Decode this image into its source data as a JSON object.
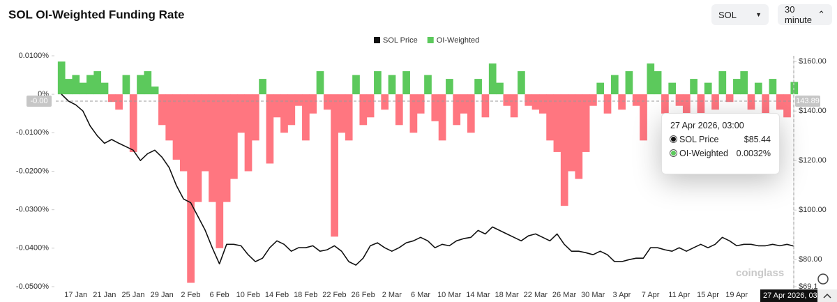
{
  "chart_data": {
    "type": "bar-line",
    "title": "SOL OI-Weighted Funding Rate",
    "controls": {
      "symbol": "SOL",
      "interval": "30 minute"
    },
    "watermark": "coinglass",
    "categories": [
      null,
      null,
      "17 Jan",
      null,
      null,
      null,
      "21 Jan",
      null,
      null,
      null,
      "25 Jan",
      null,
      null,
      null,
      "29 Jan",
      null,
      null,
      null,
      "2 Feb",
      null,
      null,
      null,
      "6 Feb",
      null,
      null,
      null,
      "10 Feb",
      null,
      null,
      null,
      "14 Feb",
      null,
      null,
      null,
      "18 Feb",
      null,
      null,
      null,
      "22 Feb",
      null,
      null,
      null,
      "26 Feb",
      null,
      null,
      null,
      "2 Mar",
      null,
      null,
      null,
      "6 Mar",
      null,
      null,
      null,
      "10 Mar",
      null,
      null,
      null,
      "14 Mar",
      null,
      null,
      null,
      "18 Mar",
      null,
      null,
      null,
      "22 Mar",
      null,
      null,
      null,
      "26 Mar",
      null,
      null,
      null,
      "30 Mar",
      null,
      null,
      null,
      "3 Apr",
      null,
      null,
      null,
      "7 Apr",
      null,
      null,
      null,
      "11 Apr",
      null,
      null,
      null,
      "15 Apr",
      null,
      null,
      null,
      "19 Apr",
      null,
      null,
      null,
      null,
      null,
      null,
      null,
      null
    ],
    "series": [
      {
        "name": "SOL Price",
        "color": "#111111",
        "axis": "y2",
        "values": [
          146.8,
          144,
          142.5,
          140,
          134,
          130,
          127,
          128.5,
          127,
          125.6,
          124.2,
          120,
          122.8,
          124.2,
          121.4,
          117.2,
          110,
          104.5,
          103,
          97.5,
          92,
          84.8,
          78.3,
          86.2,
          86.2,
          85.6,
          82,
          79.2,
          80.6,
          84.8,
          87.6,
          86.2,
          83.4,
          84.8,
          84.8,
          85.6,
          83.4,
          84,
          85.6,
          83.4,
          79.2,
          77.8,
          80.6,
          85.6,
          86.8,
          84.8,
          83.4,
          84.8,
          86.8,
          87.6,
          89,
          87.6,
          84.8,
          86.2,
          85.6,
          87.6,
          88.5,
          89,
          91.8,
          90.4,
          93.2,
          91.8,
          90.4,
          89,
          87.6,
          89.6,
          90.4,
          89,
          87.6,
          90.4,
          86.2,
          83.4,
          83.4,
          82.8,
          82,
          83.4,
          82,
          79.2,
          79.2,
          80,
          80.6,
          80.6,
          84.8,
          84.8,
          84,
          83.4,
          84.8,
          83.4,
          84.8,
          86.2,
          84.8,
          86.2,
          89,
          87.6,
          85.6,
          86.2,
          86.2,
          85.6,
          85.6,
          86.2,
          85.6,
          86.2,
          85.44
        ]
      },
      {
        "name": "OI-Weighted",
        "color": "#5cc95c",
        "negative_color": "#ff7680",
        "axis": "y",
        "values": [
          0.0085,
          0.004,
          0.005,
          0.003,
          0.005,
          0.006,
          0.003,
          -0.002,
          -0.004,
          0.005,
          -0.015,
          0.005,
          0.006,
          0.002,
          -0.008,
          -0.012,
          -0.017,
          -0.02,
          -0.049,
          -0.028,
          -0.02,
          -0.028,
          -0.04,
          -0.028,
          -0.022,
          -0.01,
          -0.02,
          -0.012,
          0.004,
          -0.018,
          -0.006,
          -0.01,
          -0.008,
          -0.003,
          -0.012,
          -0.005,
          0.006,
          -0.004,
          -0.037,
          -0.01,
          -0.012,
          0.005,
          -0.008,
          -0.006,
          0.006,
          -0.004,
          0.005,
          -0.008,
          0.006,
          -0.01,
          -0.005,
          0.005,
          -0.007,
          -0.012,
          0.004,
          -0.008,
          -0.005,
          -0.01,
          0.004,
          -0.006,
          0.008,
          0.003,
          -0.003,
          -0.006,
          0.006,
          -0.003,
          -0.004,
          -0.005,
          -0.012,
          -0.015,
          -0.029,
          -0.02,
          -0.022,
          -0.015,
          -0.003,
          0.003,
          -0.005,
          0.005,
          -0.004,
          0.006,
          -0.003,
          -0.012,
          0.008,
          0.006,
          -0.005,
          0.003,
          -0.003,
          -0.006,
          0.004,
          -0.005,
          0.003,
          -0.004,
          0.006,
          -0.002,
          0.004,
          0.006,
          -0.004,
          0.003,
          -0.005,
          0.004,
          -0.004,
          -0.006,
          0.0032
        ]
      }
    ],
    "ylim": [
      -0.05,
      0.01
    ],
    "yticks": [
      {
        "value": 0.01,
        "label": "0.0100%"
      },
      {
        "value": 0,
        "label": "0%"
      },
      {
        "value": -0.01,
        "label": "-0.0100%"
      },
      {
        "value": -0.02,
        "label": "-0.0200%"
      },
      {
        "value": -0.03,
        "label": "-0.0300%"
      },
      {
        "value": -0.04,
        "label": "-0.0400%"
      },
      {
        "value": -0.05,
        "label": "-0.0500%"
      }
    ],
    "y2lim": [
      69.1,
      162.3
    ],
    "y2ticks": [
      {
        "value": 160,
        "label": "$160.00"
      },
      {
        "value": 140,
        "label": "$140.00"
      },
      {
        "value": 120,
        "label": "$120.00"
      },
      {
        "value": 100,
        "label": "$100.00"
      },
      {
        "value": 80,
        "label": "$80.00"
      },
      {
        "value": 69.1,
        "label": "$69.1"
      }
    ],
    "legend_position": "top",
    "crosshair": {
      "x_label": "27 Apr 2026, 03:",
      "y_label": "-0.00",
      "y2_label": "143.89"
    },
    "tooltip": {
      "title": "27 Apr 2026, 03:00",
      "rows": [
        {
          "name": "SOL Price",
          "value": "$85.44"
        },
        {
          "name": "OI-Weighted",
          "value": "0.0032%"
        }
      ]
    }
  }
}
